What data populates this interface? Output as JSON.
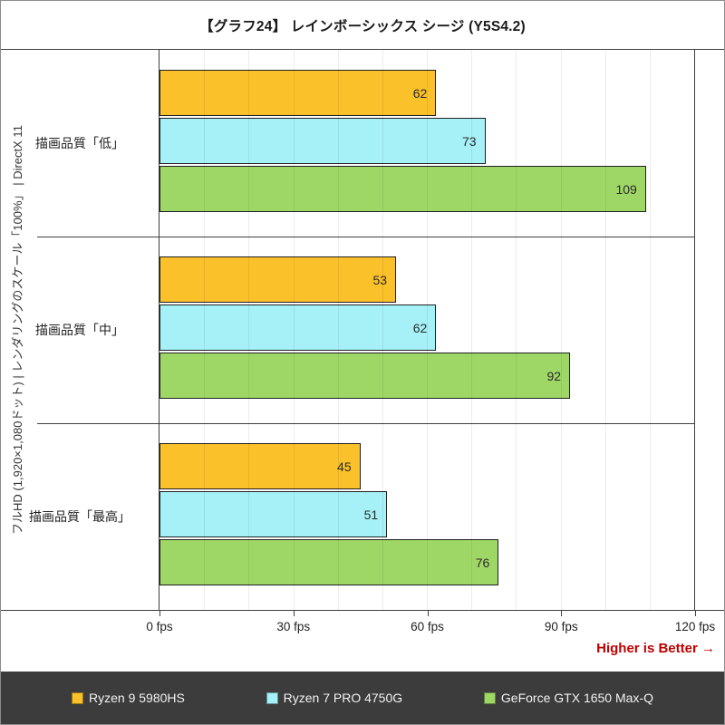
{
  "title": "【グラフ24】 レインボーシックス シージ (Y5S4.2)",
  "y_axis_label": "フルHD (1,920×1,080ドット) | レンダリングのスケール「100%」 | DirectX 11",
  "footer_note": "Higher is Better →",
  "chart_data": {
    "type": "bar",
    "orientation": "horizontal",
    "title": "【グラフ24】 レインボーシックス シージ (Y5S4.2)",
    "xlim": [
      0,
      120
    ],
    "grid_interval": 10,
    "unit": "fps",
    "x_ticks": [
      {
        "value": 0,
        "label": "0 fps"
      },
      {
        "value": 30,
        "label": "30 fps"
      },
      {
        "value": 60,
        "label": "60 fps"
      },
      {
        "value": 90,
        "label": "90 fps"
      },
      {
        "value": 120,
        "label": "120 fps"
      }
    ],
    "categories": [
      "描画品質「低」",
      "描画品質「中」",
      "描画品質「最高」"
    ],
    "series": [
      {
        "name": "Ryzen 9 5980HS",
        "color": "#FBC12B",
        "values": [
          62,
          53,
          45
        ]
      },
      {
        "name": "Ryzen 7 PRO 4750G",
        "color": "#A6F1F7",
        "values": [
          73,
          62,
          51
        ]
      },
      {
        "name": "GeForce GTX 1650 Max-Q",
        "color": "#9FD767",
        "values": [
          109,
          92,
          76
        ]
      }
    ],
    "legend_position": "bottom",
    "value_labels": "inside-end",
    "grid": true
  },
  "colors": {
    "bar_border": "#1F1F1F",
    "axis_line": "#3F3F3F",
    "gridline": "#E6E6E6",
    "outer_border": "#8C8C8C",
    "footer_bg": "#3C3C3C",
    "legend_text": "#F2F2F2",
    "note_red": "#BE0000",
    "text": "#333333"
  }
}
